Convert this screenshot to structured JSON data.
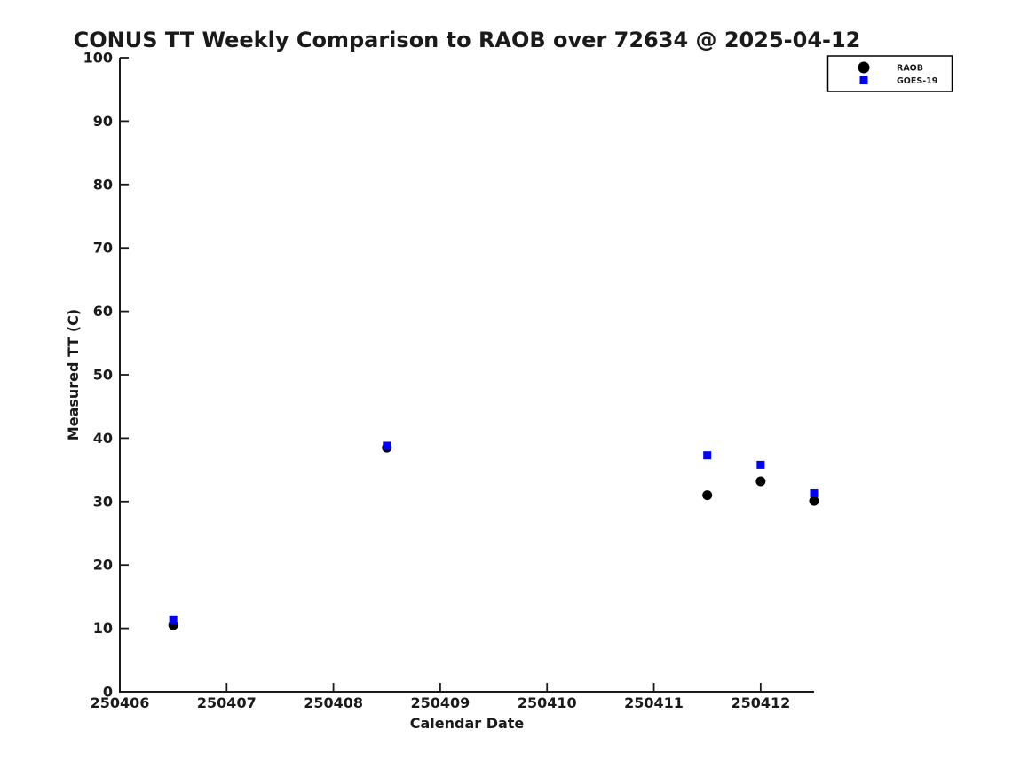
{
  "chart_data": {
    "type": "scatter",
    "title": "CONUS TT Weekly Comparison to RAOB over 72634 @ 2025-04-12",
    "xlabel": "Calendar Date",
    "ylabel": "Measured TT (C)",
    "xlim": [
      250406,
      250412.5
    ],
    "ylim": [
      0,
      100
    ],
    "x_ticks": [
      250406,
      250407,
      250408,
      250409,
      250410,
      250411,
      250412
    ],
    "y_ticks": [
      0,
      10,
      20,
      30,
      40,
      50,
      60,
      70,
      80,
      90,
      100
    ],
    "grid": false,
    "legend": {
      "position": "upper-right",
      "background": "#ffffff",
      "border_color": "#000000"
    },
    "colors": {
      "raob": "#000000",
      "goes19": "#0000ff",
      "axis": "#1a1a1a"
    },
    "series": [
      {
        "name": "RAOB",
        "marker": "circle",
        "color": "#000000",
        "points": [
          {
            "x": 250406.5,
            "y": 10.5
          },
          {
            "x": 250408.5,
            "y": 38.5
          },
          {
            "x": 250411.5,
            "y": 31.0
          },
          {
            "x": 250412.0,
            "y": 33.2
          },
          {
            "x": 250412.5,
            "y": 30.1
          }
        ]
      },
      {
        "name": "GOES-19",
        "marker": "square",
        "color": "#0000ff",
        "points": [
          {
            "x": 250406.5,
            "y": 11.3
          },
          {
            "x": 250408.5,
            "y": 38.8
          },
          {
            "x": 250411.5,
            "y": 37.3
          },
          {
            "x": 250412.0,
            "y": 35.8
          },
          {
            "x": 250412.5,
            "y": 31.3
          }
        ]
      }
    ]
  }
}
